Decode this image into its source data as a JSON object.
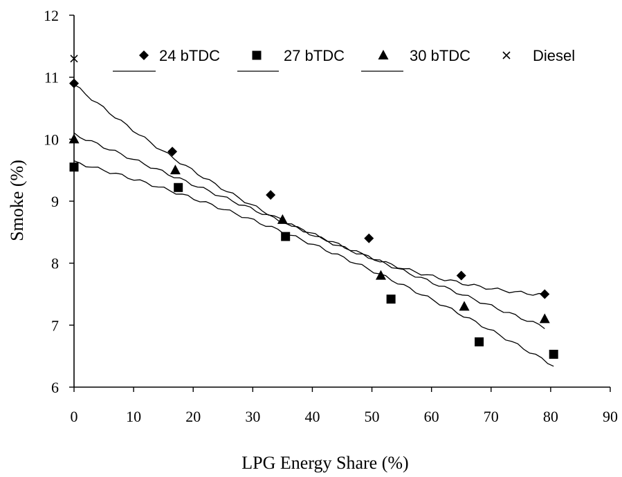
{
  "chart_data": {
    "type": "scatter",
    "title": "",
    "xlabel": "LPG Energy Share (%)",
    "ylabel": "Smoke (%)",
    "xlim": [
      0,
      90
    ],
    "ylim": [
      6,
      12
    ],
    "xticks": [
      "0",
      "10",
      "20",
      "30",
      "40",
      "50",
      "60",
      "70",
      "80",
      "90"
    ],
    "yticks": [
      "6",
      "7",
      "8",
      "9",
      "10",
      "11",
      "12"
    ],
    "grid": false,
    "legend": "top",
    "series": [
      {
        "name": "24 bTDC",
        "marker": "diamond",
        "x": [
          0,
          16.5,
          33,
          49.5,
          65,
          79
        ],
        "y": [
          10.9,
          9.8,
          9.1,
          8.4,
          7.8,
          7.5
        ],
        "trend": {
          "type": "polynomial",
          "coef": [
            10.88,
            -0.0785,
            0.00045
          ],
          "x_range": [
            0,
            79
          ]
        }
      },
      {
        "name": "27 bTDC",
        "marker": "square",
        "x": [
          0,
          17.5,
          35.5,
          53.2,
          68,
          80.5
        ],
        "y": [
          9.55,
          9.22,
          8.43,
          7.42,
          6.73,
          6.53
        ],
        "trend": {
          "type": "polynomial",
          "coef": [
            9.63,
            -0.0255,
            -0.00019
          ],
          "x_range": [
            0,
            80.5
          ]
        }
      },
      {
        "name": "30 bTDC",
        "marker": "triangle",
        "x": [
          0,
          17,
          35,
          51.5,
          65.5,
          79
        ],
        "y": [
          10.0,
          9.5,
          8.7,
          7.8,
          7.3,
          7.1
        ],
        "trend": {
          "type": "polynomial",
          "coef": [
            10.08,
            -0.041,
            2e-05
          ],
          "x_range": [
            0,
            79
          ]
        }
      },
      {
        "name": "Diesel",
        "marker": "x",
        "x": [
          0
        ],
        "y": [
          11.3
        ]
      }
    ]
  }
}
